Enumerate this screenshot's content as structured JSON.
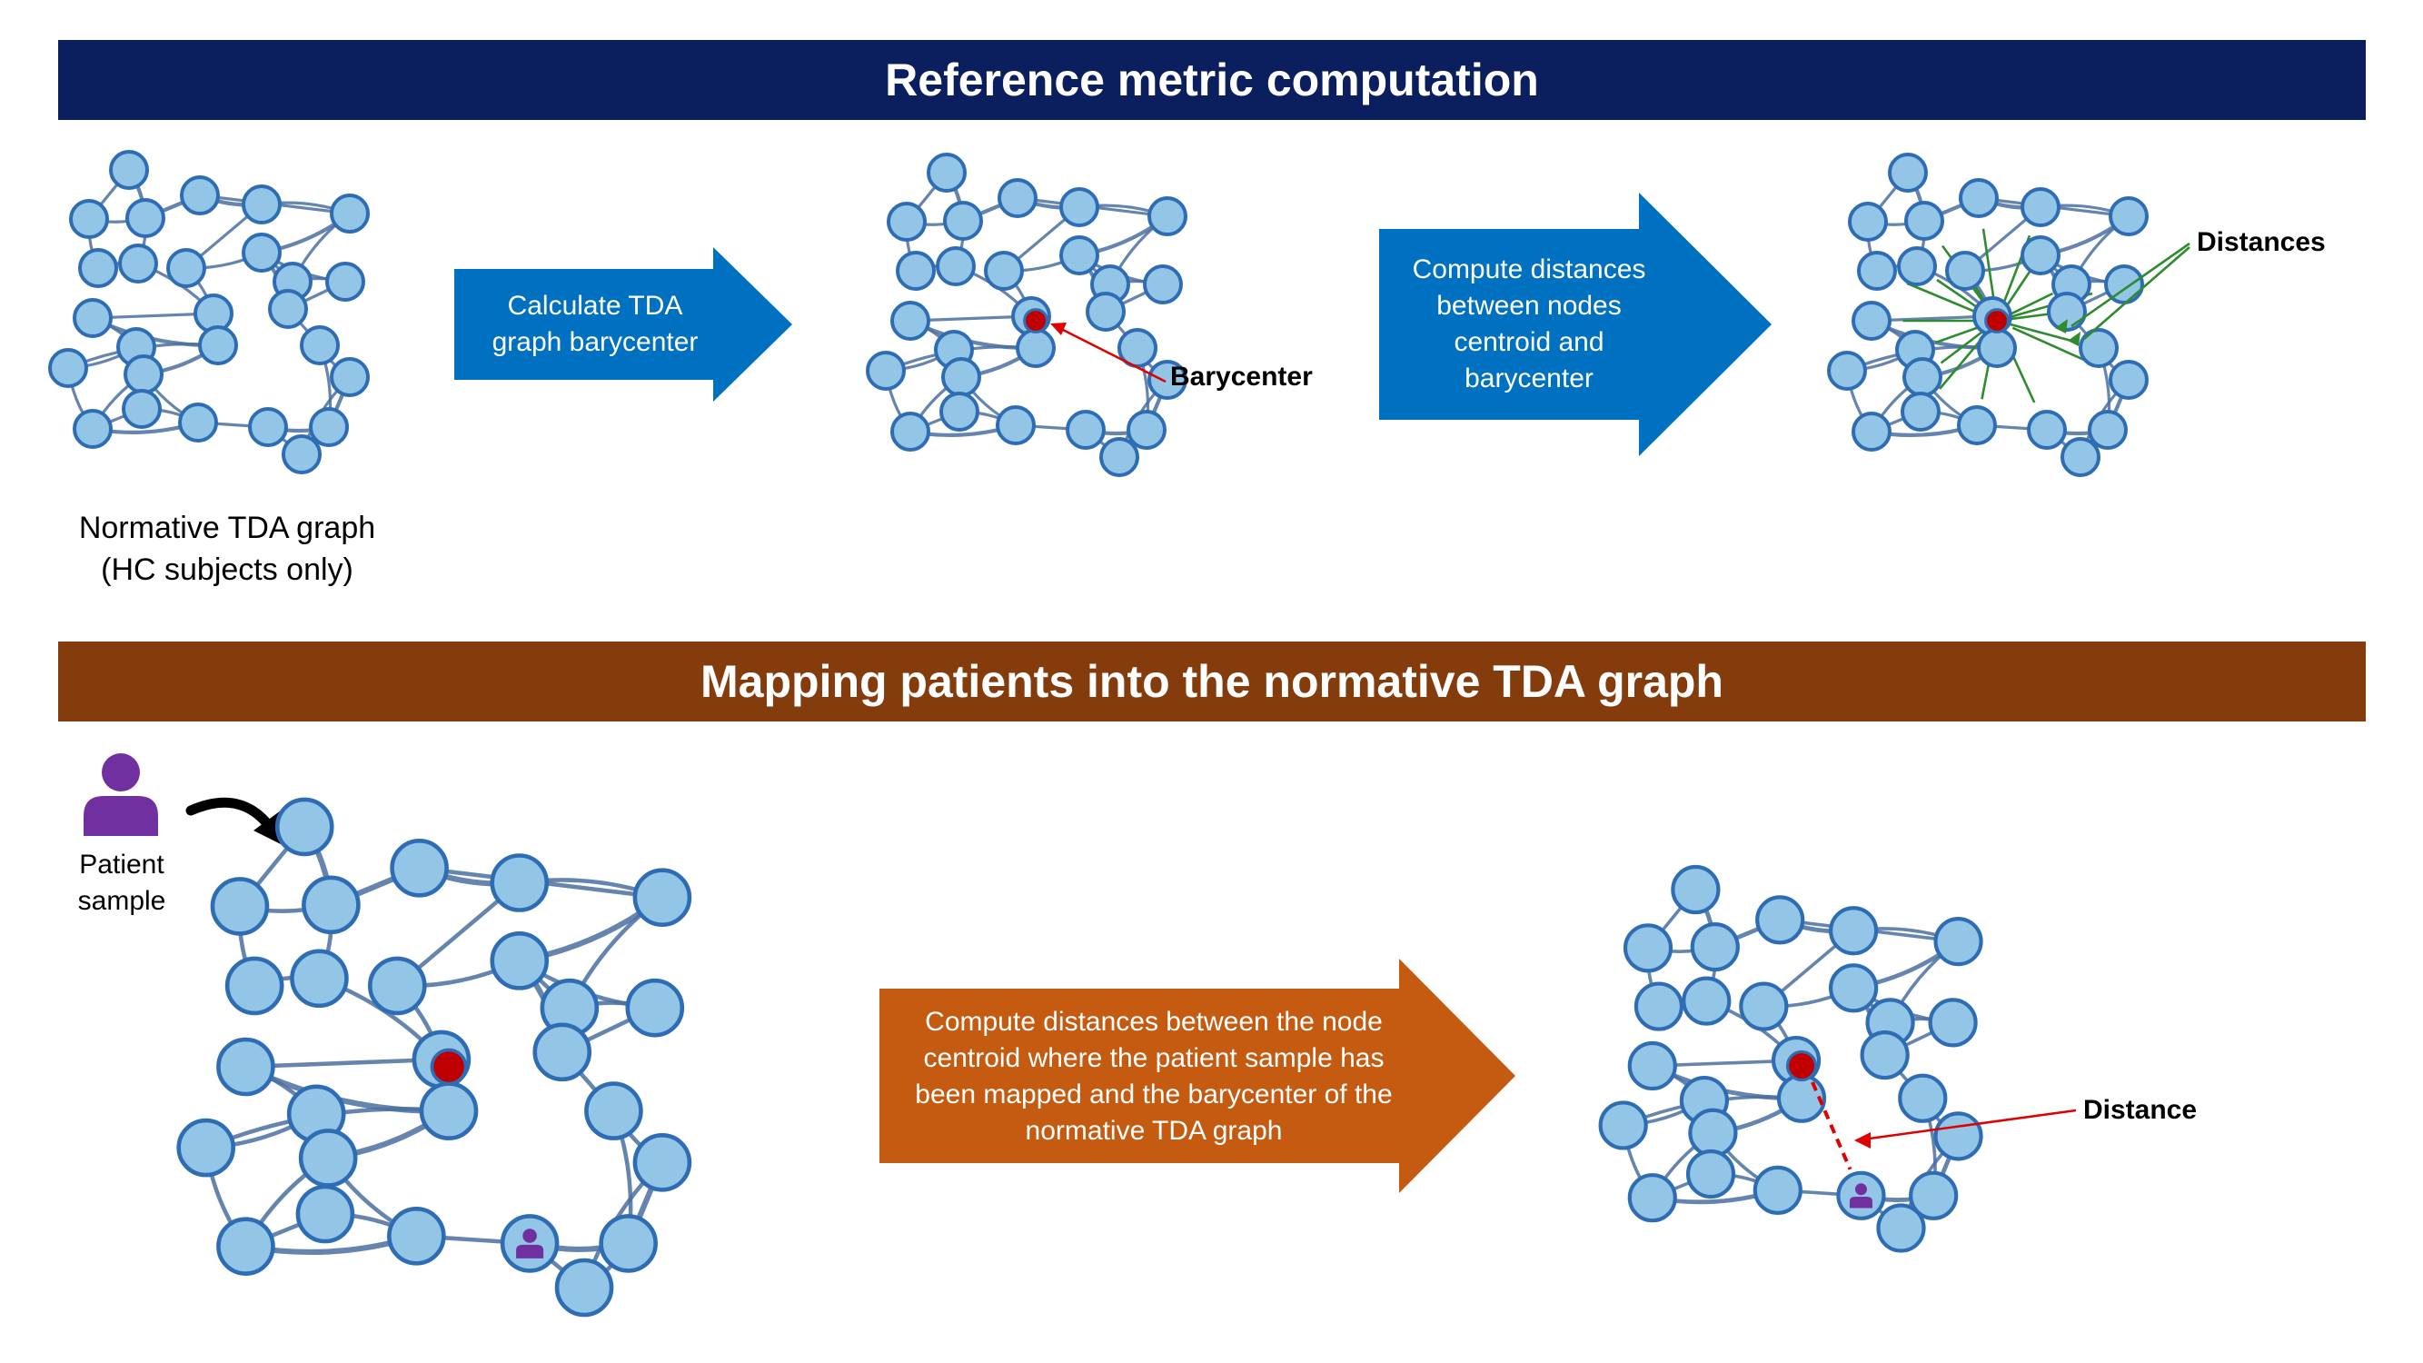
{
  "colors": {
    "banner_top": "#0B1F5E",
    "banner_bottom": "#843C0C",
    "arrow_blue": "#0070C0",
    "arrow_orange": "#C55A11",
    "node_fill": "#92C5E6",
    "node_stroke": "#2E6DB4",
    "edge": "#4A6FA0",
    "barycenter": "#C00000",
    "distance_green": "#2E8B2E",
    "distance_red": "#E00000",
    "patient": "#7030A0"
  },
  "top_section": {
    "title": "Reference metric computation",
    "graph_caption_line1": "Normative TDA graph",
    "graph_caption_line2": "(HC subjects only)",
    "arrow1_text": "Calculate TDA graph barycenter",
    "barycenter_label": "Barycenter",
    "arrow2_text": "Compute distances between nodes centroid and barycenter",
    "distances_label": "Distances"
  },
  "bottom_section": {
    "title": "Mapping patients into the normative TDA graph",
    "patient_label_line1": "Patient",
    "patient_label_line2": "sample",
    "arrow_text": "Compute distances between the node centroid where the patient sample has been mapped and the barycenter of the normative TDA graph",
    "distance_label": "Distance"
  },
  "icons": {
    "patient": "person-icon",
    "curved_arrow": "curved-arrow-icon"
  }
}
